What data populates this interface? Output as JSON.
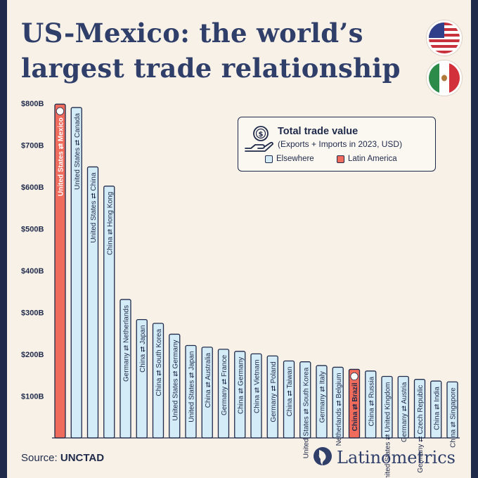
{
  "title": "US-Mexico: the world’s largest trade relationship",
  "source_label": "Source:",
  "source_value": "UNCTAD",
  "brand": "Latinometrics",
  "legend": {
    "title": "Total trade value",
    "subtitle": "(Exports + Imports in 2023, USD)",
    "items": [
      {
        "label": "Elsewhere",
        "color": "#d4ecf7"
      },
      {
        "label": "Latin America",
        "color": "#ef6b5b"
      }
    ]
  },
  "colors": {
    "elsewhere": "#d4ecf7",
    "latam": "#ef6b5b",
    "outline": "#1f2a4a",
    "title": "#2f3f6a",
    "background": "#f8f1e7"
  },
  "chart_data": {
    "type": "bar",
    "title": "Total trade value",
    "subtitle": "(Exports + Imports in 2023, USD)",
    "ylim": [
      0,
      800
    ],
    "yticks": [
      "$100B",
      "$200B",
      "$300B",
      "$400B",
      "$500B",
      "$600B",
      "$700B",
      "$800B"
    ],
    "ytick_values": [
      100,
      200,
      300,
      400,
      500,
      600,
      700,
      800
    ],
    "grid": false,
    "legend_position": "top-right",
    "categories": [
      "United States ⇄ Mexico",
      "United States ⇄ Canada",
      "United States ⇄ China",
      "China ⇄ Hong Kong",
      "Germany ⇄ Netherlands",
      "China ⇄ Japan",
      "China ⇄ South Korea",
      "United States ⇄ Germany",
      "United States ⇄ Japan",
      "China ⇄ Australia",
      "Germany ⇄ France",
      "China ⇄ Germany",
      "China ⇄ Vietnam",
      "Germany ⇄ Poland",
      "China ⇄ Taiwan",
      "United States ⇄ South Korea",
      "Germany ⇄ Italy",
      "Netherlands ⇄ Belgium",
      "China ⇄ Brazil",
      "China ⇄ Russia",
      "United States ⇄ United Kingdom",
      "Germany ⇄ Austria",
      "Germany ⇄ Czech Republic",
      "China ⇄ India",
      "China ⇄ Singapore"
    ],
    "values": [
      798,
      790,
      648,
      602,
      331,
      283,
      274,
      248,
      221,
      217,
      212,
      207,
      201,
      196,
      184,
      182,
      173,
      169,
      164,
      160,
      147,
      147,
      140,
      136,
      134
    ],
    "region": [
      "latam",
      "elsewhere",
      "elsewhere",
      "elsewhere",
      "elsewhere",
      "elsewhere",
      "elsewhere",
      "elsewhere",
      "elsewhere",
      "elsewhere",
      "elsewhere",
      "elsewhere",
      "elsewhere",
      "elsewhere",
      "elsewhere",
      "elsewhere",
      "elsewhere",
      "elsewhere",
      "latam",
      "elsewhere",
      "elsewhere",
      "elsewhere",
      "elsewhere",
      "elsewhere",
      "elsewhere"
    ]
  }
}
